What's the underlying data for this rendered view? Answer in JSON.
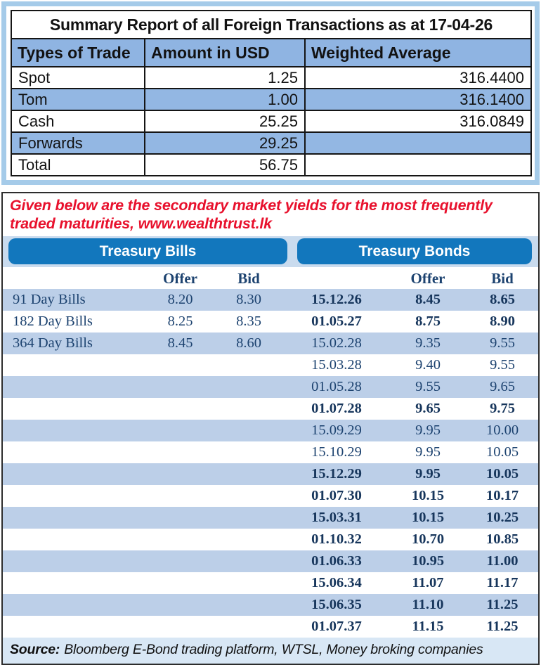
{
  "summary_table": {
    "title": "Summary Report of all Foreign Transactions as at 17-04-26",
    "columns": [
      "Types of Trade",
      "Amount in USD",
      "Weighted Average"
    ],
    "rows": [
      {
        "type": "Spot",
        "amount": "1.25",
        "weighted_avg": "316.4400"
      },
      {
        "type": "Tom",
        "amount": "1.00",
        "weighted_avg": "316.1400"
      },
      {
        "type": "Cash",
        "amount": "25.25",
        "weighted_avg": "316.0849"
      },
      {
        "type": "Forwards",
        "amount": "29.25",
        "weighted_avg": ""
      },
      {
        "type": "Total",
        "amount": "56.75",
        "weighted_avg": ""
      }
    ]
  },
  "note": {
    "text": "Given below are the secondary market yields for the most frequently\ntraded maturities, www.wealthtrust.lk",
    "color": "#e8112d"
  },
  "yields": {
    "bills_header": "Treasury Bills",
    "bonds_header": "Treasury Bonds",
    "offer_label": "Offer",
    "bid_label": "Bid",
    "bills": [
      {
        "label": "91 Day Bills",
        "offer": "8.20",
        "bid": "8.30"
      },
      {
        "label": "182 Day Bills",
        "offer": "8.25",
        "bid": "8.35"
      },
      {
        "label": "364 Day Bills",
        "offer": "8.45",
        "bid": "8.60"
      }
    ],
    "bonds": [
      {
        "maturity": "15.12.26",
        "offer": "8.45",
        "bid": "8.65",
        "bold": true
      },
      {
        "maturity": "01.05.27",
        "offer": "8.75",
        "bid": "8.90",
        "bold": true
      },
      {
        "maturity": "15.02.28",
        "offer": "9.35",
        "bid": "9.55",
        "bold": false
      },
      {
        "maturity": "15.03.28",
        "offer": "9.40",
        "bid": "9.55",
        "bold": false
      },
      {
        "maturity": "01.05.28",
        "offer": "9.55",
        "bid": "9.65",
        "bold": false
      },
      {
        "maturity": "01.07.28",
        "offer": "9.65",
        "bid": "9.75",
        "bold": true
      },
      {
        "maturity": "15.09.29",
        "offer": "9.95",
        "bid": "10.00",
        "bold": false
      },
      {
        "maturity": "15.10.29",
        "offer": "9.95",
        "bid": "10.05",
        "bold": false
      },
      {
        "maturity": "15.12.29",
        "offer": "9.95",
        "bid": "10.05",
        "bold": true
      },
      {
        "maturity": "01.07.30",
        "offer": "10.15",
        "bid": "10.17",
        "bold": true
      },
      {
        "maturity": "15.03.31",
        "offer": "10.15",
        "bid": "10.25",
        "bold": true
      },
      {
        "maturity": "01.10.32",
        "offer": "10.70",
        "bid": "10.85",
        "bold": true
      },
      {
        "maturity": "01.06.33",
        "offer": "10.95",
        "bid": "11.00",
        "bold": true
      },
      {
        "maturity": "15.06.34",
        "offer": "11.07",
        "bid": "11.17",
        "bold": true
      },
      {
        "maturity": "15.06.35",
        "offer": "11.10",
        "bid": "11.25",
        "bold": true
      },
      {
        "maturity": "01.07.37",
        "offer": "11.15",
        "bid": "11.25",
        "bold": true
      }
    ]
  },
  "source": {
    "label": "Source:",
    "text": "Bloomberg E-Bond trading platform, WTSL, Money broking companies"
  },
  "colors": {
    "frame_blue": "#a5cbe9",
    "header_row_blue": "#8fb4e2",
    "stripe_blue": "#bccfe8",
    "bar_blue": "#1277bd",
    "navy_text": "#1d4370",
    "note_red": "#e8112d",
    "source_bg": "#d8e7f5"
  }
}
